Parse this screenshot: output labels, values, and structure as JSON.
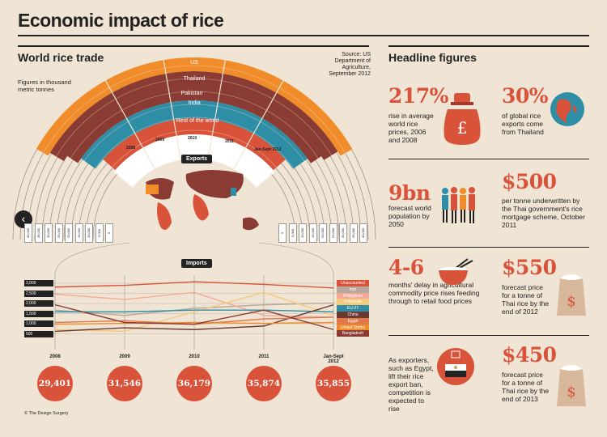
{
  "title": "Economic impact of rice",
  "trade": {
    "title": "World rice trade",
    "source": "Source: US Department of Agriculture, September 2012",
    "units": "Figures in thousand metric tonnes",
    "exports_label": "Exports",
    "imports_label": "Imports",
    "arc_labels": [
      "US",
      "Thailand",
      "Pakistan",
      "India",
      "Rest of the world"
    ],
    "arc_year_labels": [
      "2008",
      "2009",
      "2010",
      "2011",
      "Jan-Sept 2012"
    ],
    "left_ticks": [
      "40,000",
      "35,000",
      "30,000",
      "25,000",
      "20,000",
      "15,000",
      "10,000",
      "5,000",
      "0"
    ],
    "right_ticks": [
      "0",
      "5,000",
      "10,000",
      "15,000",
      "20,000",
      "25,000",
      "30,000",
      "35,000",
      "40,000"
    ]
  },
  "chart_data": {
    "type": "line",
    "title": "Imports",
    "categories": [
      "2008",
      "2009",
      "2010",
      "2011",
      "Jan-Sept 2012"
    ],
    "yticks": [
      "3,000",
      "2,500",
      "2,000",
      "1,500",
      "1,000",
      "500"
    ],
    "ylim": [
      0,
      3200
    ],
    "series": [
      {
        "name": "Unaccounted",
        "color": "#d9533b",
        "values": [
          2800,
          2900,
          3100,
          2950,
          2750
        ]
      },
      {
        "name": "Iran",
        "color": "#b8a89a",
        "values": [
          1500,
          1200,
          1600,
          1800,
          1900
        ]
      },
      {
        "name": "Philippines",
        "color": "#f4a99a",
        "values": [
          2400,
          2100,
          2500,
          1200,
          1100
        ]
      },
      {
        "name": "Indonesia",
        "color": "#f5c97a",
        "values": [
          400,
          300,
          1400,
          2500,
          1200
        ]
      },
      {
        "name": "EU-27",
        "color": "#2e8ea5",
        "values": [
          1400,
          1400,
          1500,
          1500,
          1400
        ]
      },
      {
        "name": "China",
        "color": "#6b3a30",
        "values": [
          300,
          500,
          400,
          600,
          1800
        ]
      },
      {
        "name": "Egypt",
        "color": "#e07a4a",
        "values": [
          800,
          900,
          700,
          1000,
          1100
        ]
      },
      {
        "name": "United States",
        "color": "#f08c2a",
        "values": [
          700,
          750,
          800,
          750,
          800
        ]
      },
      {
        "name": "Bangladesh",
        "color": "#8a3b33",
        "values": [
          1800,
          800,
          700,
          1500,
          400
        ]
      }
    ],
    "totals": [
      "29,401",
      "31,546",
      "36,179",
      "35,874",
      "35,855"
    ]
  },
  "headline": {
    "title": "Headline figures",
    "items": [
      {
        "big": "217%",
        "text": "rise in average world rice prices, 2006 and 2008",
        "icon": "money-bag-icon"
      },
      {
        "big": "30%",
        "text": "of global rice exports come from Thailand",
        "icon": "globe-icon"
      },
      {
        "big": "9bn",
        "text": "forecast world population by 2050",
        "icon": "people-icon"
      },
      {
        "big": "$500",
        "text": "per tonne underwritten by the Thai government's rice mortgage scheme, October 2011",
        "icon": ""
      },
      {
        "big": "4-6",
        "text": "months' delay in agricultural commodity price rises feeding through to retail food prices",
        "icon": "rice-bowl-icon"
      },
      {
        "big": "$550",
        "text": "forecast price for a tonne of Thai rice by the end of 2012",
        "icon": "rice-sack-icon"
      },
      {
        "big": "",
        "text": "As exporters, such as Egypt, lift their rice export ban, competition is expected to rise",
        "icon": "egypt-stamp-icon"
      },
      {
        "big": "$450",
        "text": "forecast price for a tonne of Thai rice by the end of 2013",
        "icon": "rice-sack-icon"
      }
    ],
    "money_symbol": "£",
    "sack_symbol": "$"
  },
  "credit": "© The Design Surgery",
  "colors": {
    "accent": "#d9533b",
    "orange": "#f08c2a",
    "brown": "#8a3b33",
    "teal": "#2e8ea5",
    "background": "#f0e5d4"
  }
}
